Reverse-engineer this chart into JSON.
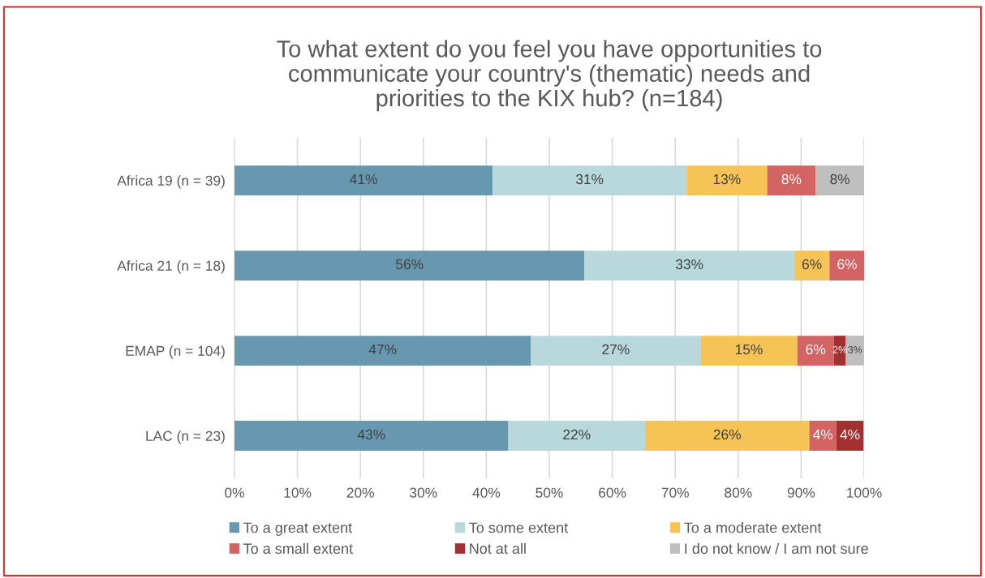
{
  "chart_data": {
    "type": "bar",
    "orientation": "horizontal",
    "stacked": true,
    "title": "To what extent do you feel you have opportunities to\ncommunicate your country's (thematic) needs and\npriorities to the KIX hub? (n=184)",
    "categories": [
      "Africa 19 (n = 39)",
      "Africa 21 (n = 18)",
      "EMAP (n = 104)",
      "LAC (n = 23)"
    ],
    "xlim": [
      0,
      100
    ],
    "xticks": [
      {
        "value": 0,
        "label": "0%"
      },
      {
        "value": 10,
        "label": "10%"
      },
      {
        "value": 20,
        "label": "20%"
      },
      {
        "value": 30,
        "label": "30%"
      },
      {
        "value": 40,
        "label": "40%"
      },
      {
        "value": 50,
        "label": "50%"
      },
      {
        "value": 60,
        "label": "60%"
      },
      {
        "value": 70,
        "label": "70%"
      },
      {
        "value": 80,
        "label": "80%"
      },
      {
        "value": 90,
        "label": "90%"
      },
      {
        "value": 100,
        "label": "100%"
      }
    ],
    "grid": "x",
    "legend": "bottom",
    "series": [
      {
        "name": "To a great extent",
        "color": "#6798b0",
        "values": [
          41.0,
          55.6,
          47.1,
          43.5
        ],
        "value_labels": [
          "41%",
          "56%",
          "47%",
          "43%"
        ]
      },
      {
        "name": "To some extent",
        "color": "#b9d8db",
        "values": [
          30.8,
          33.3,
          26.9,
          21.7
        ],
        "value_labels": [
          "31%",
          "33%",
          "27%",
          "22%"
        ]
      },
      {
        "name": "To a moderate extent",
        "color": "#f6c357",
        "values": [
          12.8,
          5.6,
          15.4,
          26.1
        ],
        "value_labels": [
          "13%",
          "6%",
          "15%",
          "26%"
        ]
      },
      {
        "name": "To a small extent",
        "color": "#d46363",
        "values": [
          7.7,
          5.6,
          5.8,
          4.3
        ],
        "value_labels": [
          "8%",
          "6%",
          "6%",
          "4%"
        ]
      },
      {
        "name": "Not at all",
        "color": "#a33030",
        "values": [
          0,
          0,
          1.9,
          4.3
        ],
        "value_labels": [
          null,
          null,
          "2%",
          "4%"
        ]
      },
      {
        "name": "I do not know / I am not sure",
        "color": "#bfbfbf",
        "values": [
          7.7,
          0,
          2.9,
          0
        ],
        "value_labels": [
          "8%",
          null,
          "3%",
          null
        ]
      }
    ]
  }
}
